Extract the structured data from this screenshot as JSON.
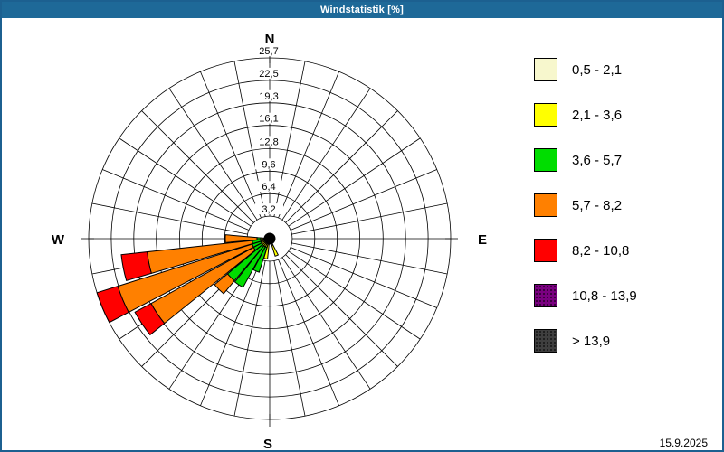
{
  "titlebar": {
    "title": "Windstatistik [%]"
  },
  "footer": {
    "date": "15.9.2025"
  },
  "colors": {
    "frame": "#1c6090",
    "titlebar_bg": "#1e6998",
    "titlebar_text": "#ffffff",
    "background": "#ffffff",
    "grid_line": "#000000",
    "hub": "#000000"
  },
  "chart_data": {
    "type": "windrose",
    "title": "Windstatistik [%]",
    "value_unit": "%",
    "radial_axis": {
      "min": 0,
      "max": 25.7,
      "ticks": [
        3.2,
        6.4,
        9.6,
        12.8,
        16.1,
        19.3,
        22.5,
        25.7
      ],
      "tick_labels": [
        "3,2",
        "6,4",
        "9,6",
        "12,8",
        "16,1",
        "19,3",
        "22,5",
        "25,7"
      ]
    },
    "grid": {
      "rings": 8,
      "spokes": 32,
      "spoke_step_deg": 11.25,
      "grid_on": true
    },
    "compass_labels": [
      {
        "label": "N",
        "deg": 0
      },
      {
        "label": "E",
        "deg": 90
      },
      {
        "label": "S",
        "deg": 180
      },
      {
        "label": "W",
        "deg": 270
      }
    ],
    "speed_classes": [
      {
        "label": "0,5 - 2,1",
        "color": "#f7f7cd",
        "dotted": false
      },
      {
        "label": "2,1 - 3,6",
        "color": "#ffff00",
        "dotted": false
      },
      {
        "label": "3,6 - 5,7",
        "color": "#00dd00",
        "dotted": false
      },
      {
        "label": "5,7 - 8,2",
        "color": "#ff8000",
        "dotted": false
      },
      {
        "label": "8,2 - 10,8",
        "color": "#ff0000",
        "dotted": false
      },
      {
        "label": "10,8 - 13,9",
        "color": "#7a0080",
        "dotted": true
      },
      {
        "label": "> 13,9",
        "color": "#3f3f3f",
        "dotted": true
      }
    ],
    "directions": [
      {
        "dir": "W",
        "deg": 270.0,
        "values": [
          0.9,
          0.4,
          0.5,
          4.5,
          0.0,
          0,
          0
        ],
        "total": 6.3
      },
      {
        "dir": "WbS",
        "deg": 258.75,
        "values": [
          0.8,
          0.5,
          1.2,
          15.0,
          3.7,
          0,
          0
        ],
        "total": 21.2
      },
      {
        "dir": "WSW",
        "deg": 247.5,
        "values": [
          0.8,
          0.5,
          1.3,
          20.0,
          3.1,
          0,
          0
        ],
        "total": 25.7
      },
      {
        "dir": "SWbW",
        "deg": 236.25,
        "values": [
          0.8,
          0.5,
          1.3,
          16.6,
          2.6,
          0,
          0
        ],
        "total": 21.8
      },
      {
        "dir": "SW",
        "deg": 225.0,
        "values": [
          0.8,
          0.5,
          6.5,
          2.4,
          0.0,
          0,
          0
        ],
        "total": 10.2
      },
      {
        "dir": "SWbS",
        "deg": 213.75,
        "values": [
          0.8,
          0.5,
          6.6,
          0.0,
          0.0,
          0,
          0
        ],
        "total": 7.9
      },
      {
        "dir": "SSW",
        "deg": 202.5,
        "values": [
          0.8,
          0.5,
          3.7,
          0.0,
          0.0,
          0,
          0
        ],
        "total": 5.0
      },
      {
        "dir": "SbW",
        "deg": 191.25,
        "values": [
          0.8,
          2.1,
          0.0,
          0.0,
          0.0,
          0,
          0
        ],
        "total": 2.9
      },
      {
        "dir": "SSE",
        "deg": 157.5,
        "values": [
          1.0,
          1.6,
          0.0,
          0.0,
          0.0,
          0,
          0
        ],
        "total": 2.6
      }
    ]
  }
}
